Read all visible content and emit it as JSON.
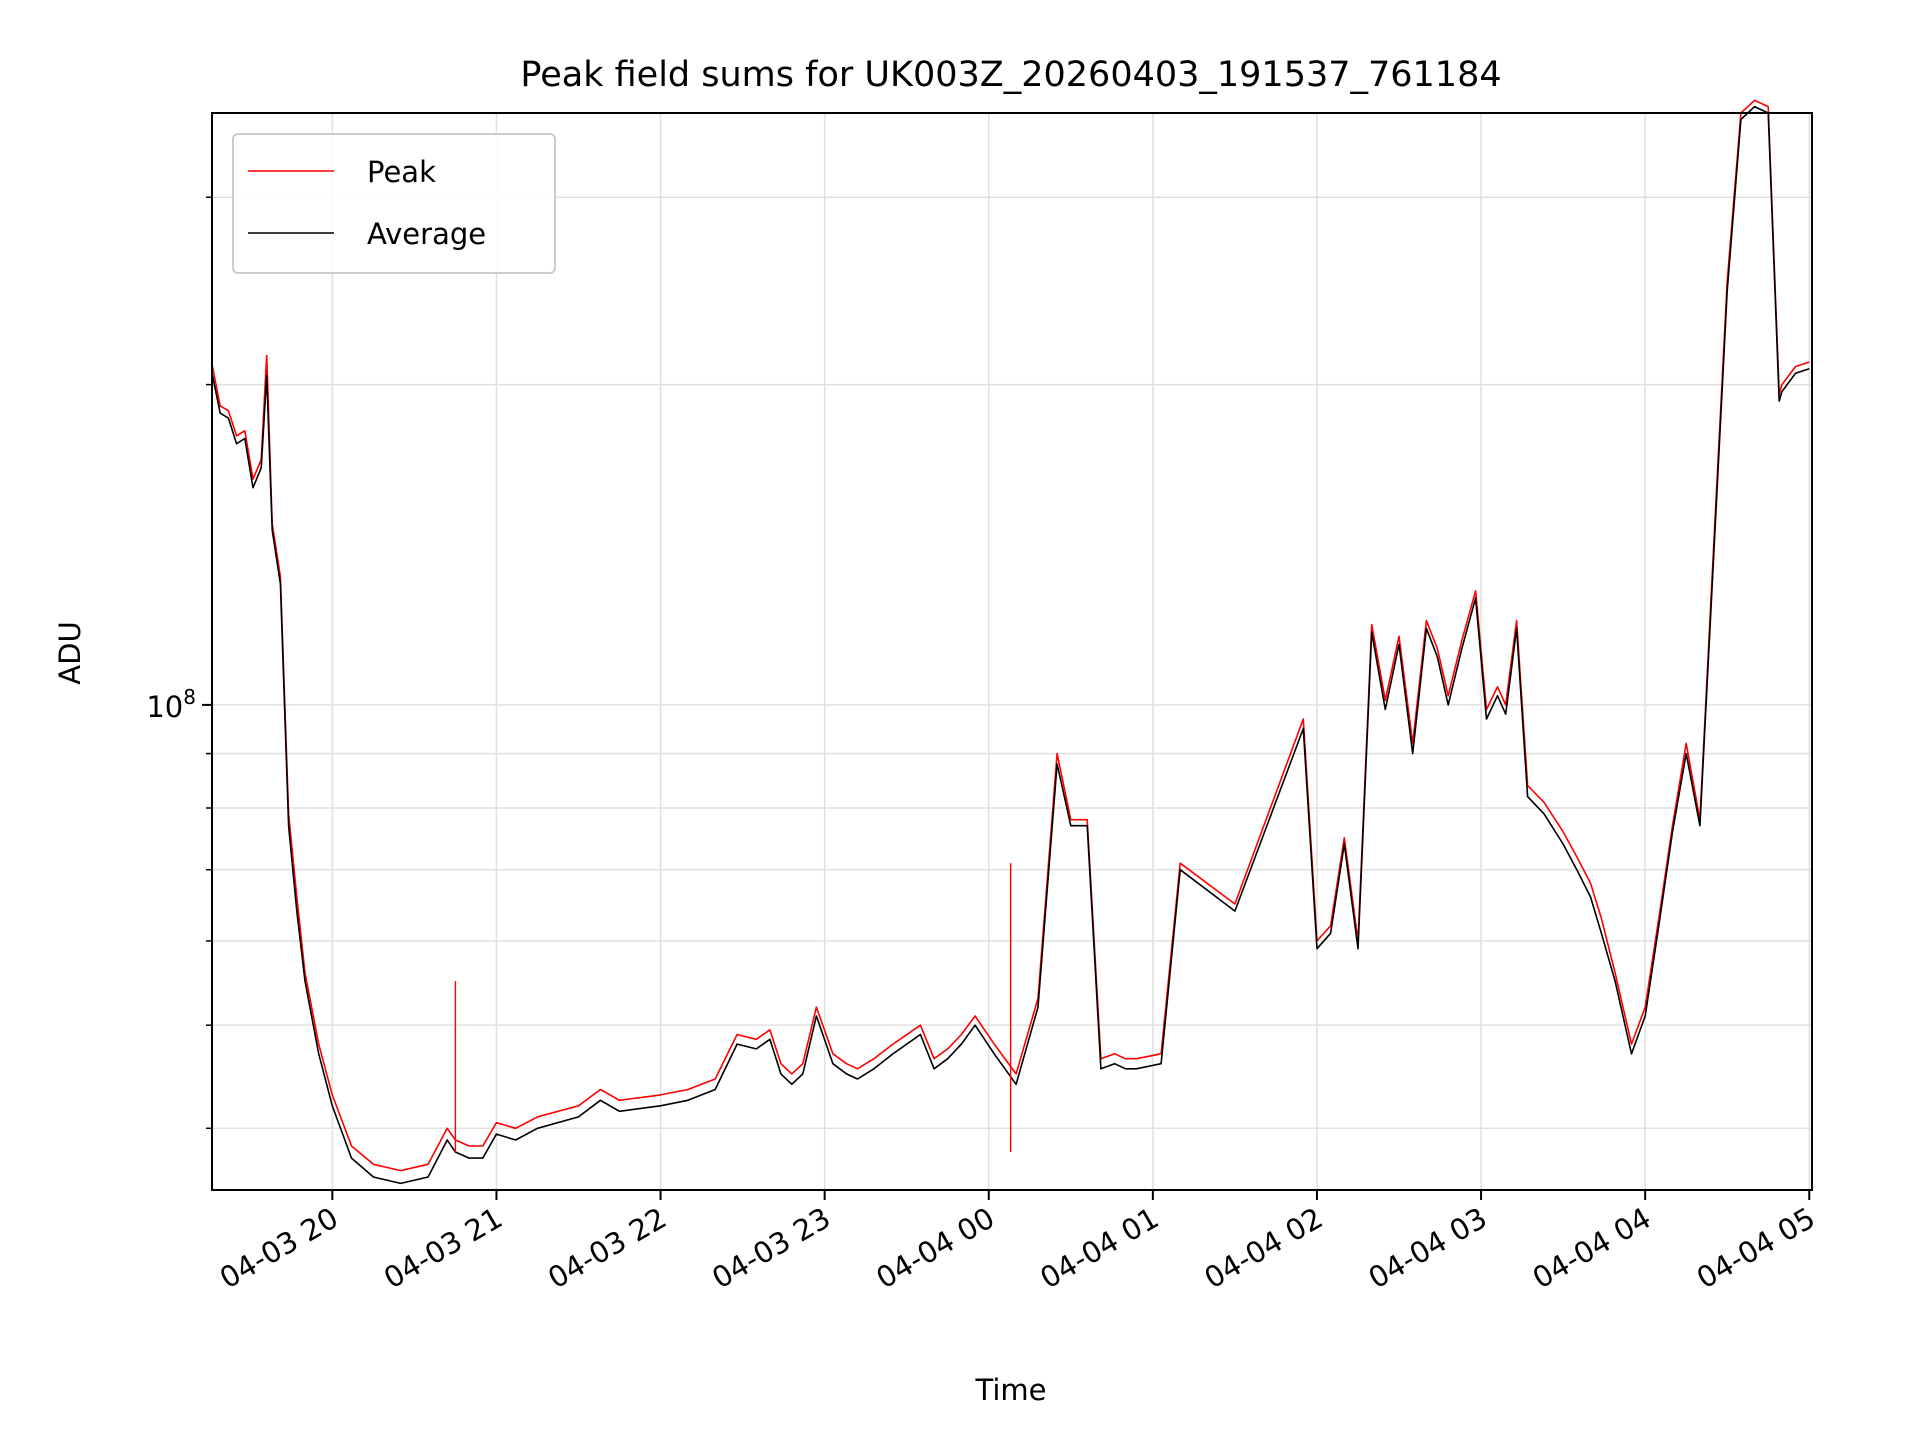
{
  "chart_data": {
    "type": "line",
    "title": "Peak field sums for UK003Z_20260403_191537_761184",
    "xlabel": "Time",
    "ylabel": "ADU",
    "x_scale": "time",
    "y_scale": "log",
    "xlim": [
      "2026-04-03 19:16",
      "2026-04-04 05:01"
    ],
    "ylim": [
      35000000,
      360000000
    ],
    "x_ticks": [
      {
        "value": "2026-04-03 20:00",
        "label": "04-03 20"
      },
      {
        "value": "2026-04-03 21:00",
        "label": "04-03 21"
      },
      {
        "value": "2026-04-03 22:00",
        "label": "04-03 22"
      },
      {
        "value": "2026-04-03 23:00",
        "label": "04-03 23"
      },
      {
        "value": "2026-04-04 00:00",
        "label": "04-04 00"
      },
      {
        "value": "2026-04-04 01:00",
        "label": "04-04 01"
      },
      {
        "value": "2026-04-04 02:00",
        "label": "04-04 02"
      },
      {
        "value": "2026-04-04 03:00",
        "label": "04-04 03"
      },
      {
        "value": "2026-04-04 04:00",
        "label": "04-04 04"
      },
      {
        "value": "2026-04-04 05:00",
        "label": "04-04 05"
      }
    ],
    "y_major_ticks": [
      {
        "value": 100000000,
        "base": "10",
        "exp": "8"
      }
    ],
    "y_minor_ticks": [
      40000000,
      50000000,
      60000000,
      70000000,
      80000000,
      90000000,
      200000000,
      300000000
    ],
    "grid": true,
    "legend": {
      "placement": "top-left"
    },
    "colors": {
      "peak": "#ff0000",
      "average": "#000000"
    },
    "x": [
      "2026-04-03 19:16",
      "2026-04-03 19:19",
      "2026-04-03 19:22",
      "2026-04-03 19:25",
      "2026-04-03 19:28",
      "2026-04-03 19:31",
      "2026-04-03 19:34",
      "2026-04-03 19:36",
      "2026-04-03 19:38",
      "2026-04-03 19:41",
      "2026-04-03 19:44",
      "2026-04-03 19:47",
      "2026-04-03 19:50",
      "2026-04-03 19:55",
      "2026-04-03 20:00",
      "2026-04-03 20:07",
      "2026-04-03 20:15",
      "2026-04-03 20:25",
      "2026-04-03 20:35",
      "2026-04-03 20:42",
      "2026-04-03 20:45",
      "2026-04-03 20:50",
      "2026-04-03 20:55",
      "2026-04-03 21:00",
      "2026-04-03 21:07",
      "2026-04-03 21:15",
      "2026-04-03 21:30",
      "2026-04-03 21:38",
      "2026-04-03 21:45",
      "2026-04-03 22:00",
      "2026-04-03 22:10",
      "2026-04-03 22:20",
      "2026-04-03 22:28",
      "2026-04-03 22:35",
      "2026-04-03 22:40",
      "2026-04-03 22:44",
      "2026-04-03 22:48",
      "2026-04-03 22:52",
      "2026-04-03 22:57",
      "2026-04-03 23:03",
      "2026-04-03 23:08",
      "2026-04-03 23:12",
      "2026-04-03 23:18",
      "2026-04-03 23:25",
      "2026-04-03 23:35",
      "2026-04-03 23:40",
      "2026-04-03 23:45",
      "2026-04-03 23:50",
      "2026-04-03 23:55",
      "2026-04-04 00:02",
      "2026-04-04 00:10",
      "2026-04-04 00:18",
      "2026-04-04 00:25",
      "2026-04-04 00:30",
      "2026-04-04 00:36",
      "2026-04-04 00:41",
      "2026-04-04 00:46",
      "2026-04-04 00:50",
      "2026-04-04 00:54",
      "2026-04-04 01:03",
      "2026-04-04 01:10",
      "2026-04-04 01:30",
      "2026-04-04 01:55",
      "2026-04-04 02:00",
      "2026-04-04 02:05",
      "2026-04-04 02:10",
      "2026-04-04 02:15",
      "2026-04-04 02:20",
      "2026-04-04 02:25",
      "2026-04-04 02:30",
      "2026-04-04 02:35",
      "2026-04-04 02:40",
      "2026-04-04 02:44",
      "2026-04-04 02:48",
      "2026-04-04 02:53",
      "2026-04-04 02:58",
      "2026-04-04 03:02",
      "2026-04-04 03:06",
      "2026-04-04 03:09",
      "2026-04-04 03:13",
      "2026-04-04 03:17",
      "2026-04-04 03:23",
      "2026-04-04 03:30",
      "2026-04-04 03:35",
      "2026-04-04 03:40",
      "2026-04-04 03:44",
      "2026-04-04 03:49",
      "2026-04-04 03:55",
      "2026-04-04 04:00",
      "2026-04-04 04:05",
      "2026-04-04 04:10",
      "2026-04-04 04:15",
      "2026-04-04 04:20",
      "2026-04-04 04:25",
      "2026-04-04 04:30",
      "2026-04-04 04:35",
      "2026-04-04 04:40",
      "2026-04-04 04:45",
      "2026-04-04 04:49",
      "2026-04-04 04:50",
      "2026-04-04 04:55",
      "2026-04-04 05:00"
    ],
    "series": [
      {
        "name": "Peak",
        "values": [
          209000000,
          191000000,
          189000000,
          179000000,
          181000000,
          163000000,
          170000000,
          213000000,
          148000000,
          132000000,
          79000000,
          66000000,
          56000000,
          48000000,
          43000000,
          38500000,
          37000000,
          36500000,
          37000000,
          40000000,
          39000000,
          38500000,
          38500000,
          40500000,
          40000000,
          41000000,
          42000000,
          43500000,
          42500000,
          43000000,
          43500000,
          44500000,
          49000000,
          48500000,
          49500000,
          46000000,
          45000000,
          46000000,
          52000000,
          47000000,
          46000000,
          45500000,
          46500000,
          48000000,
          50000000,
          46500000,
          47500000,
          49000000,
          51000000,
          48000000,
          45000000,
          53000000,
          90000000,
          78000000,
          78000000,
          46500000,
          47000000,
          46500000,
          46500000,
          47000000,
          71000000,
          65000000,
          97000000,
          60000000,
          62000000,
          75000000,
          60000000,
          119000000,
          101000000,
          116000000,
          92000000,
          120000000,
          113000000,
          102000000,
          115000000,
          128000000,
          99000000,
          104000000,
          100000000,
          120000000,
          84000000,
          81000000,
          76000000,
          72000000,
          68000000,
          63000000,
          56000000,
          48000000,
          52000000,
          63000000,
          77000000,
          92000000,
          78000000,
          140000000,
          250000000,
          360000000,
          370000000,
          365000000,
          196000000,
          200000000,
          208000000,
          210000000
        ]
      },
      {
        "name": "Average",
        "values": [
          205000000,
          188000000,
          186000000,
          176000000,
          178000000,
          160000000,
          167000000,
          204000000,
          146000000,
          130000000,
          77000000,
          64000000,
          55000000,
          47000000,
          42000000,
          37500000,
          36000000,
          35500000,
          36000000,
          39000000,
          38000000,
          37500000,
          37500000,
          39500000,
          39000000,
          40000000,
          41000000,
          42500000,
          41500000,
          42000000,
          42500000,
          43500000,
          48000000,
          47500000,
          48500000,
          45000000,
          44000000,
          45000000,
          51000000,
          46000000,
          45000000,
          44500000,
          45500000,
          47000000,
          49000000,
          45500000,
          46500000,
          48000000,
          50000000,
          47000000,
          44000000,
          52000000,
          88000000,
          77000000,
          77000000,
          45500000,
          46000000,
          45500000,
          45500000,
          46000000,
          70000000,
          64000000,
          95000000,
          59000000,
          61000000,
          74000000,
          59000000,
          117000000,
          99000000,
          114000000,
          90000000,
          118000000,
          111000000,
          100000000,
          113000000,
          126000000,
          97000000,
          102000000,
          98000000,
          118000000,
          82000000,
          79000000,
          74000000,
          70000000,
          66000000,
          61000000,
          55000000,
          47000000,
          51000000,
          62000000,
          76000000,
          90000000,
          77000000,
          137000000,
          245000000,
          355000000,
          365000000,
          360000000,
          193000000,
          197000000,
          205000000,
          207000000
        ]
      }
    ],
    "annotations": {
      "narrow_spikes_peak_only": [
        {
          "x": "2026-04-03 20:45",
          "y": 55000000
        },
        {
          "x": "2026-04-04 00:08",
          "y": 71000000
        }
      ]
    }
  }
}
